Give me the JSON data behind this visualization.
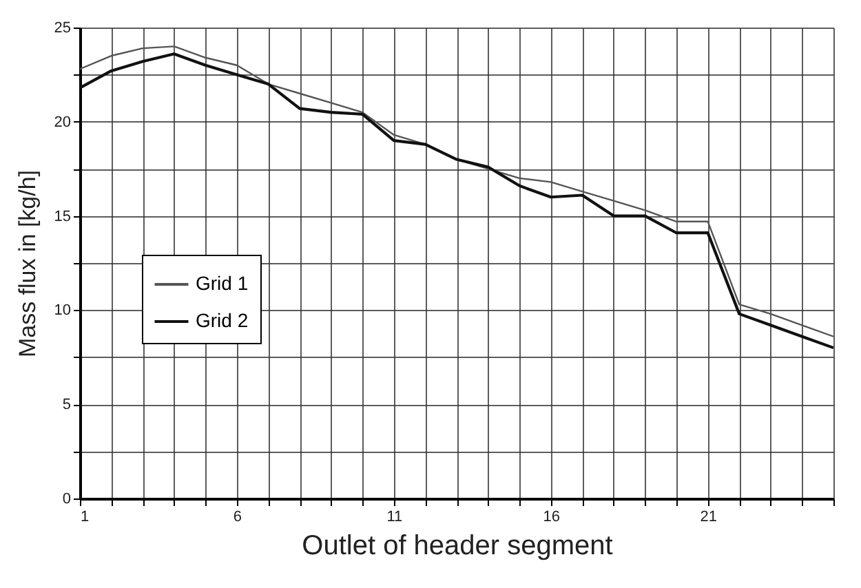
{
  "chart_data": {
    "type": "line",
    "xlabel": "Outlet of header segment",
    "ylabel": "Mass flux in [kg/h]",
    "x": [
      1,
      2,
      3,
      4,
      5,
      6,
      7,
      8,
      9,
      10,
      11,
      12,
      13,
      14,
      15,
      16,
      17,
      18,
      19,
      20,
      21,
      22,
      23,
      24,
      25
    ],
    "series": [
      {
        "name": "Grid 1",
        "color": "#555555",
        "values": [
          22.8,
          23.5,
          23.9,
          24.0,
          23.4,
          23.0,
          22.0,
          21.5,
          21.0,
          20.5,
          19.3,
          18.8,
          18.0,
          17.5,
          17.0,
          16.8,
          16.3,
          15.8,
          15.3,
          14.7,
          14.7,
          10.3,
          9.8,
          9.2,
          8.6
        ]
      },
      {
        "name": "Grid 2",
        "color": "#111111",
        "values": [
          21.8,
          22.7,
          23.2,
          23.6,
          23.0,
          22.5,
          22.0,
          20.7,
          20.5,
          20.4,
          19.0,
          18.8,
          18.0,
          17.6,
          16.6,
          16.0,
          16.1,
          15.0,
          15.0,
          14.1,
          14.1,
          9.8,
          9.2,
          8.6,
          8.0
        ]
      }
    ],
    "xlim": [
      1,
      25
    ],
    "xticks": [
      1,
      {
        "value": 2,
        "label": null
      },
      {
        "value": 3,
        "label": null
      },
      {
        "value": 4,
        "label": null
      },
      {
        "value": 5,
        "label": null
      },
      6,
      {
        "value": 7,
        "label": null
      },
      {
        "value": 8,
        "label": null
      },
      {
        "value": 9,
        "label": null
      },
      {
        "value": 10,
        "label": null
      },
      11,
      {
        "value": 12,
        "label": null
      },
      {
        "value": 13,
        "label": null
      },
      {
        "value": 14,
        "label": null
      },
      {
        "value": 15,
        "label": null
      },
      16,
      {
        "value": 17,
        "label": null
      },
      {
        "value": 18,
        "label": null
      },
      {
        "value": 19,
        "label": null
      },
      {
        "value": 20,
        "label": null
      },
      21,
      {
        "value": 22,
        "label": null
      },
      {
        "value": 23,
        "label": null
      },
      {
        "value": 24,
        "label": null
      },
      {
        "value": 25,
        "label": null
      }
    ],
    "ylim": [
      0,
      25
    ],
    "yticks": [
      0,
      {
        "value": 2.5,
        "label": null
      },
      5,
      {
        "value": 7.5,
        "label": null
      },
      10,
      {
        "value": 12.5,
        "label": null
      },
      15,
      {
        "value": 17.5,
        "label": null
      },
      20,
      {
        "value": 22.5,
        "label": null
      },
      25
    ],
    "grid": true,
    "legend": "left",
    "marker": "none",
    "line_style": "solid"
  }
}
